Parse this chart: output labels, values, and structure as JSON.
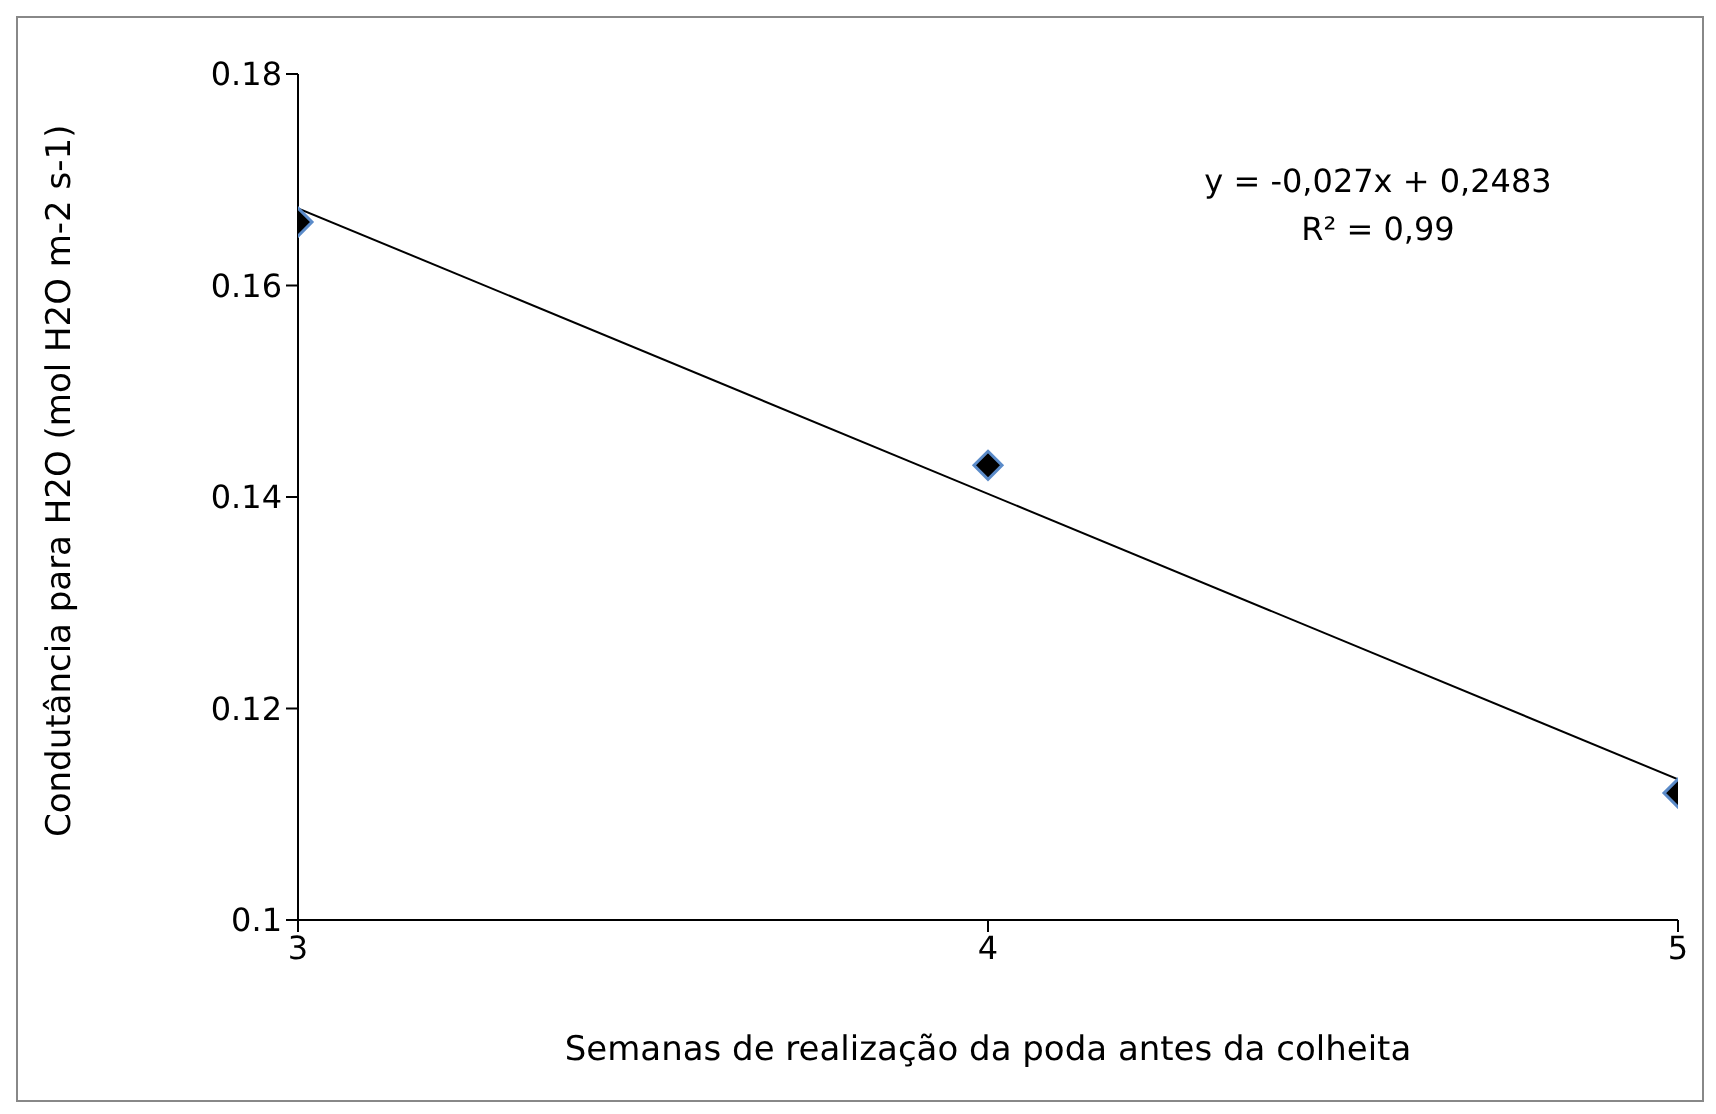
{
  "chart_data": {
    "type": "scatter",
    "xlabel": "Semanas  de realização da poda antes da  colheita",
    "ylabel": "Condutância para H2O (mol H2O m-2 s-1)",
    "series": [
      {
        "color": "#000000",
        "x": [
          3,
          4,
          5
        ],
        "values": [
          0.166,
          0.143,
          0.112
        ],
        "marker": "diamond"
      },
      {
        "type": "line",
        "color": "#000000",
        "x": [
          3,
          5
        ],
        "values": [
          0.1673,
          0.1133
        ],
        "marker": "none"
      }
    ],
    "xlim": [
      3,
      5
    ],
    "xticks": [
      3,
      4,
      5
    ],
    "ylim": [
      0.1,
      0.18
    ],
    "yticks": [
      0.1,
      0.12,
      0.14,
      0.16,
      0.18
    ],
    "grid": false,
    "annotations": [
      "y = -0,027x + 0,2483",
      "R² = 0,99"
    ]
  }
}
